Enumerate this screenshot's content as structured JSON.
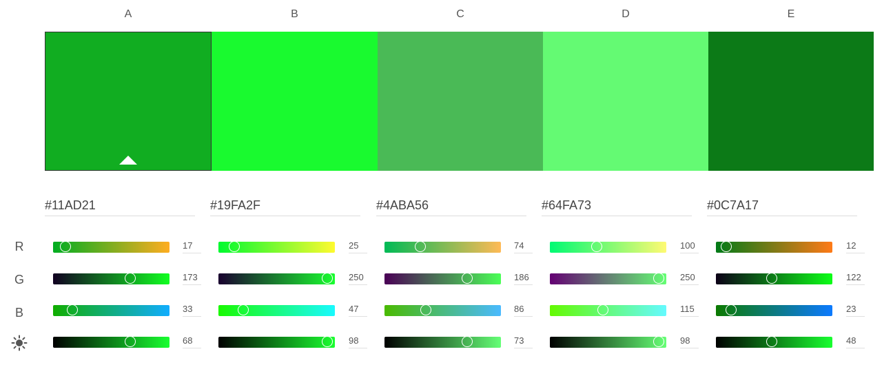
{
  "brightness_icon": "sun-icon",
  "row_labels": {
    "r": "R",
    "g": "G",
    "b": "B"
  },
  "selected_index": 0,
  "columns": [
    {
      "letter": "A",
      "hex": "#11AD21",
      "color": "#11ad21",
      "r": 17,
      "g": 173,
      "b": 33,
      "brightness": 68
    },
    {
      "letter": "B",
      "hex": "#19FA2F",
      "color": "#19fa2f",
      "r": 25,
      "g": 250,
      "b": 47,
      "brightness": 98
    },
    {
      "letter": "C",
      "hex": "#4ABA56",
      "color": "#4aba56",
      "r": 74,
      "g": 186,
      "b": 86,
      "brightness": 73
    },
    {
      "letter": "D",
      "hex": "#64FA73",
      "color": "#64fa73",
      "r": 100,
      "g": 250,
      "b": 115,
      "brightness": 98
    },
    {
      "letter": "E",
      "hex": "#0C7A17",
      "color": "#0c7a17",
      "r": 12,
      "g": 122,
      "b": 23,
      "brightness": 48
    }
  ]
}
